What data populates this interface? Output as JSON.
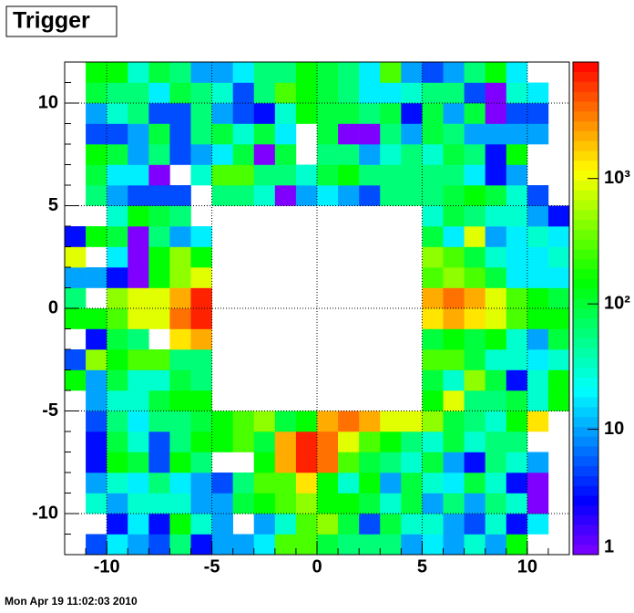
{
  "chart_data": {
    "type": "heatmap",
    "title": "Trigger",
    "footer": "Mon Apr 19 11:02:03 2010",
    "xbins": [
      -12,
      -11,
      -10,
      -9,
      -8,
      -7,
      -6,
      -5,
      -4,
      -3,
      -2,
      -1,
      0,
      1,
      2,
      3,
      4,
      5,
      6,
      7,
      8,
      9,
      10,
      11,
      12
    ],
    "ybins": [
      -12,
      -11,
      -10,
      -9,
      -8,
      -7,
      -6,
      -5,
      -4,
      -3,
      -2,
      -1,
      0,
      1,
      2,
      3,
      4,
      5,
      6,
      7,
      8,
      9,
      10,
      11,
      12
    ],
    "xlim": [
      -12,
      12
    ],
    "ylim": [
      -12,
      12
    ],
    "xticks": [
      -10,
      -5,
      0,
      5,
      10
    ],
    "yticks": [
      -10,
      -5,
      0,
      5,
      10
    ],
    "zlim": [
      1,
      8500
    ],
    "zlog": true,
    "palette": "rainbow",
    "zticks": [
      1,
      10,
      {
        "value": 100,
        "label": "10²"
      },
      {
        "value": 1000,
        "label": "10³"
      }
    ],
    "grid": true,
    "z": [
      [
        null,
        5,
        18,
        10,
        5,
        60,
        3,
        10,
        10,
        18,
        270,
        270,
        95,
        60,
        60,
        60,
        10,
        18,
        10,
        30,
        10,
        150,
        null,
        null
      ],
      [
        null,
        null,
        3,
        18,
        3,
        150,
        30,
        10,
        null,
        10,
        30,
        270,
        470,
        95,
        5,
        95,
        30,
        30,
        10,
        5,
        30,
        3,
        18,
        null
      ],
      [
        null,
        30,
        10,
        30,
        30,
        30,
        10,
        10,
        95,
        150,
        270,
        470,
        150,
        150,
        95,
        30,
        95,
        10,
        60,
        10,
        60,
        30,
        1,
        null
      ],
      [
        null,
        10,
        30,
        18,
        60,
        18,
        10,
        5,
        60,
        270,
        270,
        1400,
        150,
        30,
        150,
        10,
        95,
        30,
        18,
        95,
        30,
        3,
        1,
        null
      ],
      [
        null,
        3,
        150,
        95,
        5,
        150,
        60,
        null,
        null,
        150,
        2200,
        6500,
        3500,
        270,
        95,
        60,
        30,
        95,
        10,
        3,
        60,
        30,
        10,
        null
      ],
      [
        null,
        3,
        95,
        30,
        5,
        60,
        150,
        150,
        270,
        95,
        2200,
        6500,
        3500,
        900,
        270,
        150,
        60,
        30,
        95,
        30,
        60,
        60,
        null,
        null
      ],
      [
        null,
        5,
        60,
        18,
        60,
        60,
        95,
        150,
        270,
        470,
        95,
        150,
        2200,
        3500,
        2200,
        900,
        900,
        470,
        95,
        60,
        30,
        150,
        1400,
        null
      ],
      [
        null,
        10,
        30,
        30,
        95,
        150,
        150,
        null,
        null,
        null,
        null,
        null,
        null,
        null,
        null,
        null,
        null,
        150,
        900,
        60,
        60,
        95,
        30,
        150
      ],
      [
        150,
        10,
        95,
        30,
        30,
        95,
        60,
        null,
        null,
        null,
        null,
        null,
        null,
        null,
        null,
        null,
        null,
        95,
        30,
        470,
        95,
        3,
        30,
        150
      ],
      [
        5,
        470,
        150,
        270,
        270,
        60,
        60,
        null,
        null,
        null,
        null,
        null,
        null,
        null,
        null,
        null,
        null,
        270,
        270,
        95,
        30,
        30,
        18,
        30
      ],
      [
        null,
        3,
        95,
        60,
        null,
        1400,
        2200,
        null,
        null,
        null,
        null,
        null,
        null,
        null,
        null,
        null,
        null,
        95,
        150,
        95,
        150,
        30,
        10,
        95
      ],
      [
        150,
        150,
        270,
        900,
        900,
        3500,
        6500,
        null,
        null,
        null,
        null,
        null,
        null,
        null,
        null,
        null,
        null,
        1400,
        2200,
        1400,
        900,
        270,
        150,
        150
      ],
      [
        60,
        null,
        470,
        900,
        900,
        2200,
        6500,
        null,
        null,
        null,
        null,
        null,
        null,
        null,
        null,
        null,
        null,
        2200,
        3500,
        2200,
        900,
        270,
        150,
        95
      ],
      [
        10,
        10,
        3,
        1,
        150,
        470,
        900,
        null,
        null,
        null,
        null,
        null,
        null,
        null,
        null,
        null,
        null,
        270,
        470,
        270,
        95,
        18,
        18,
        18
      ],
      [
        900,
        null,
        18,
        1,
        150,
        470,
        150,
        null,
        null,
        null,
        null,
        null,
        null,
        null,
        null,
        null,
        null,
        470,
        270,
        95,
        30,
        18,
        18,
        30
      ],
      [
        3,
        150,
        95,
        1,
        60,
        10,
        18,
        null,
        null,
        null,
        null,
        null,
        null,
        null,
        null,
        null,
        null,
        95,
        18,
        900,
        10,
        18,
        30,
        18
      ],
      [
        null,
        null,
        30,
        150,
        95,
        60,
        null,
        null,
        null,
        null,
        null,
        null,
        null,
        null,
        null,
        null,
        null,
        30,
        95,
        60,
        30,
        30,
        10,
        3
      ],
      [
        null,
        60,
        10,
        5,
        5,
        5,
        null,
        60,
        60,
        30,
        1,
        10,
        18,
        10,
        5,
        60,
        60,
        60,
        95,
        150,
        95,
        30,
        5,
        null
      ],
      [
        null,
        95,
        18,
        18,
        1,
        null,
        30,
        270,
        270,
        60,
        60,
        30,
        95,
        150,
        60,
        60,
        60,
        60,
        60,
        18,
        3,
        10,
        null,
        null
      ],
      [
        null,
        150,
        95,
        10,
        60,
        5,
        10,
        18,
        95,
        1,
        95,
        null,
        60,
        60,
        10,
        30,
        60,
        30,
        95,
        60,
        3,
        150,
        null,
        null
      ],
      [
        null,
        5,
        5,
        10,
        95,
        5,
        60,
        95,
        30,
        95,
        18,
        null,
        95,
        1,
        1,
        60,
        10,
        95,
        60,
        10,
        10,
        10,
        10,
        null
      ],
      [
        null,
        10,
        30,
        60,
        5,
        5,
        60,
        10,
        5,
        3,
        30,
        150,
        95,
        95,
        60,
        95,
        3,
        95,
        10,
        95,
        1,
        5,
        5,
        null
      ],
      [
        null,
        95,
        60,
        60,
        18,
        95,
        60,
        30,
        5,
        60,
        270,
        150,
        95,
        60,
        18,
        18,
        30,
        60,
        60,
        5,
        1,
        30,
        18,
        null
      ],
      [
        null,
        150,
        150,
        30,
        95,
        60,
        10,
        10,
        18,
        60,
        60,
        150,
        95,
        60,
        18,
        270,
        10,
        5,
        10,
        60,
        150,
        18,
        null,
        null
      ]
    ]
  }
}
